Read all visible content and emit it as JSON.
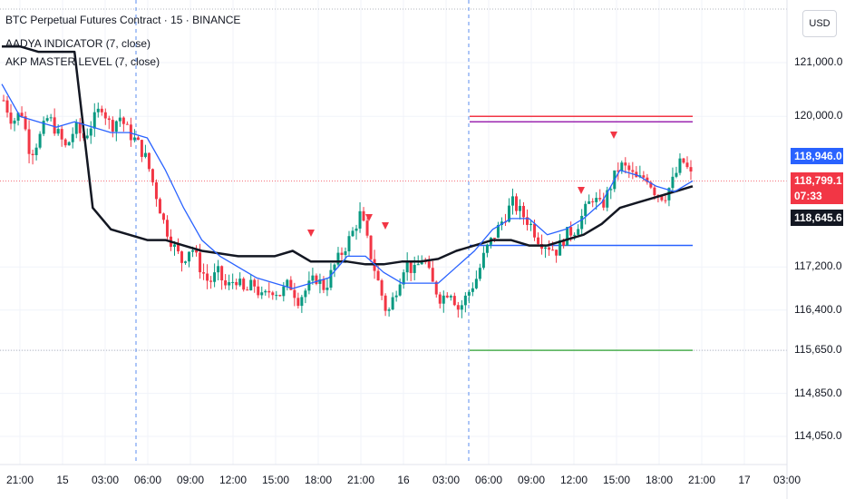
{
  "legend": {
    "title": "BTC Perpetual Futures Contract · 15 · BINANCE",
    "ind1": "AADYA INDICATOR (7, close)",
    "ind2": "AKP MASTER LEVEL (7, close)"
  },
  "currency": "USD",
  "colors": {
    "up": "#089981",
    "down": "#f23645",
    "ma_fast": "#2962ff",
    "ma_slow": "#131722",
    "level_top": "#f23645",
    "level_top2": "#9c27b0",
    "level_mid": "#2962ff",
    "level_low": "#4caf50",
    "marker": "#f23645"
  },
  "price_tags": [
    {
      "label": "118,946.0",
      "color": "#2962ff",
      "value": 118946
    },
    {
      "label": "118,799.1",
      "color": "#f23645",
      "value": 118799.1
    },
    {
      "label": "07:33",
      "color": "#f23645",
      "value": 118799.1
    },
    {
      "label": "118,645.6",
      "color": "#131722",
      "value": 118645.6
    }
  ],
  "chart_data": {
    "type": "candlestick",
    "title": "BTC Perpetual Futures Contract · 15 · BINANCE",
    "y_ticks": [
      "121,000.0",
      "120,000.0",
      "118,946.0",
      "117,200.0",
      "116,400.0",
      "115,650.0",
      "114,850.0",
      "114,050.0"
    ],
    "y_tick_values": [
      121000,
      120000,
      118946,
      117200,
      116400,
      115650,
      114850,
      114050
    ],
    "ylim": [
      113500,
      122000
    ],
    "x_ticks": [
      "21:00",
      "15",
      "03:00",
      "06:00",
      "09:00",
      "12:00",
      "15:00",
      "18:00",
      "21:00",
      "16",
      "03:00",
      "06:00",
      "09:00",
      "12:00",
      "15:00",
      "18:00",
      "21:00",
      "17",
      "03:00"
    ],
    "ohlc_path": [
      120300,
      119900,
      120100,
      119300,
      119600,
      120000,
      119700,
      119400,
      119800,
      119600,
      119900,
      120200,
      119800,
      120000,
      119700,
      119500,
      119200,
      118600,
      118000,
      117600,
      117300,
      117600,
      117200,
      116900,
      117100,
      116800,
      117000,
      116700,
      116900,
      116600,
      116800,
      116700,
      116900,
      116600,
      116800,
      117000,
      116800,
      117200,
      117500,
      117800,
      118200,
      117500,
      116900,
      116300,
      116800,
      117300,
      117100,
      117400,
      116900,
      116600,
      116800,
      116400,
      116700,
      117000,
      117500,
      117800,
      118100,
      118400,
      118200,
      118000,
      117700,
      117600,
      117500,
      117800,
      117900,
      118200,
      118500,
      118300,
      118700,
      119100,
      119000,
      118800,
      118900,
      118600,
      118500,
      118800,
      119200,
      118900
    ],
    "ma_fast": [
      120600,
      120000,
      119900,
      119800,
      119900,
      119800,
      119700,
      119700,
      119600,
      119000,
      118300,
      117700,
      117400,
      117200,
      117000,
      116900,
      116800,
      116900,
      117000,
      117400,
      117400,
      117100,
      116900,
      116900,
      116900,
      117200,
      117500,
      117900,
      118100,
      118100,
      117800,
      117900,
      118100,
      118400,
      119000,
      118900,
      118700,
      118600,
      118800
    ],
    "ma_slow": [
      121300,
      121300,
      121200,
      121200,
      121200,
      118300,
      117900,
      117800,
      117700,
      117700,
      117600,
      117500,
      117450,
      117400,
      117400,
      117400,
      117500,
      117300,
      117300,
      117300,
      117250,
      117250,
      117300,
      117300,
      117350,
      117500,
      117600,
      117700,
      117700,
      117600,
      117600,
      117700,
      117800,
      118000,
      118300,
      118400,
      118500,
      118600,
      118700
    ],
    "levels": [
      {
        "value": 120000,
        "color": "#f23645"
      },
      {
        "value": 119900,
        "color": "#9c27b0"
      },
      {
        "value": 117600,
        "color": "#2962ff"
      },
      {
        "value": 115650,
        "color": "#4caf50"
      }
    ],
    "session_lines": [
      "06:00",
      "06:00"
    ],
    "sell_markers": [
      "18:00",
      "21:00",
      "21:00",
      "15:00",
      "12:00"
    ]
  }
}
